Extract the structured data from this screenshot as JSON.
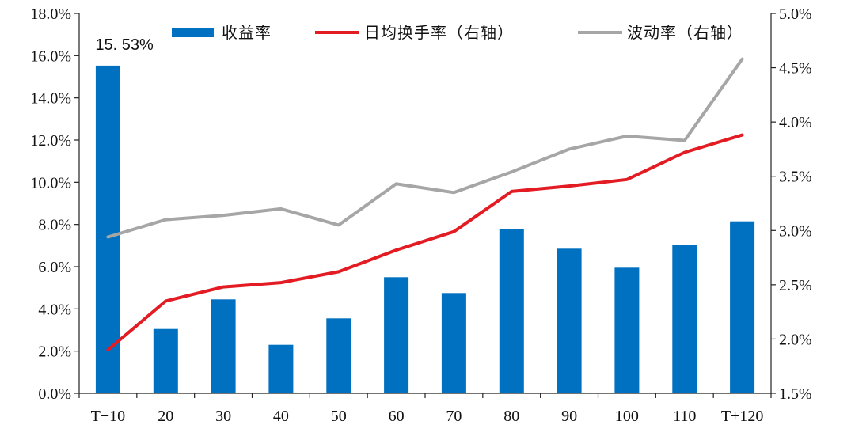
{
  "chart_data": {
    "type": "bar",
    "categories": [
      "T+10",
      "20",
      "30",
      "40",
      "50",
      "60",
      "70",
      "80",
      "90",
      "100",
      "110",
      "T+120"
    ],
    "series": [
      {
        "name": "收益率",
        "type": "bar",
        "axis": "left",
        "color": "#0070C0",
        "values": [
          15.53,
          3.05,
          4.45,
          2.3,
          3.55,
          5.5,
          4.75,
          7.8,
          6.85,
          5.95,
          7.05,
          8.15
        ]
      },
      {
        "name": "日均换手率（右轴）",
        "type": "line",
        "axis": "right",
        "color": "#E31B23",
        "values": [
          1.9,
          2.35,
          2.48,
          2.52,
          2.62,
          2.82,
          2.99,
          3.36,
          3.41,
          3.47,
          3.72,
          3.88
        ]
      },
      {
        "name": "波动率（右轴）",
        "type": "line",
        "axis": "right",
        "color": "#A6A6A6",
        "values": [
          2.94,
          3.1,
          3.14,
          3.2,
          3.05,
          3.43,
          3.35,
          3.54,
          3.75,
          3.87,
          3.83,
          4.58
        ]
      }
    ],
    "left_axis": {
      "ylim": [
        0,
        18
      ],
      "ticks": [
        0,
        2,
        4,
        6,
        8,
        10,
        12,
        14,
        16,
        18
      ],
      "tick_labels": [
        "0.0%",
        "2.0%",
        "4.0%",
        "6.0%",
        "8.0%",
        "10.0%",
        "12.0%",
        "14.0%",
        "16.0%",
        "18.0%"
      ]
    },
    "right_axis": {
      "ylim": [
        1.5,
        5.0
      ],
      "ticks": [
        1.5,
        2.0,
        2.5,
        3.0,
        3.5,
        4.0,
        4.5,
        5.0
      ],
      "tick_labels": [
        "1.5%",
        "2.0%",
        "2.5%",
        "3.0%",
        "3.5%",
        "4.0%",
        "4.5%",
        "5.0%"
      ]
    },
    "annotations": [
      {
        "series": "收益率",
        "index": 0,
        "text": "15. 53%"
      }
    ],
    "legend": {
      "placement": "top"
    },
    "grid": false
  }
}
